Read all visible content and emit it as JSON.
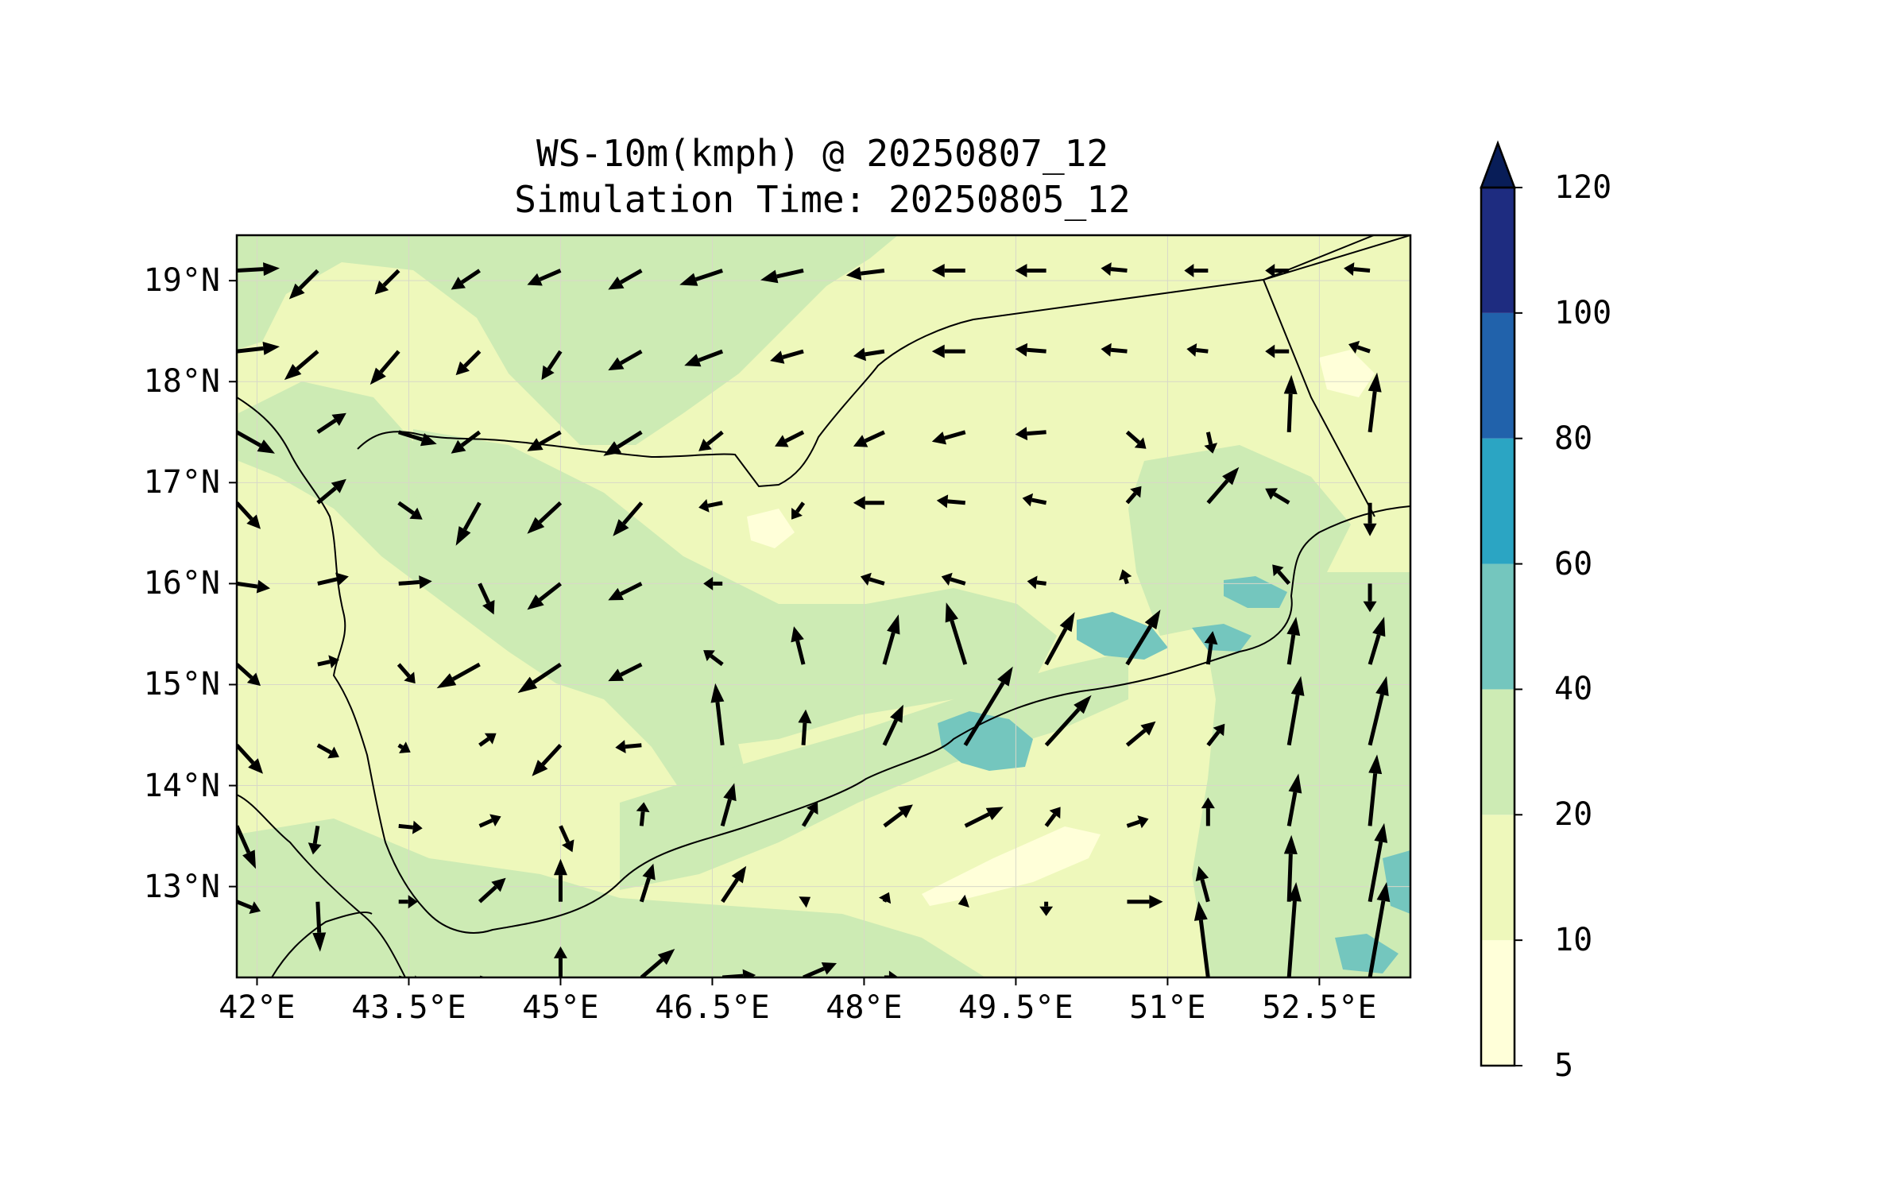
{
  "title": {
    "line1": "WS-10m(kmph) @ 20250807_12",
    "line2": "Simulation Time: 20250805_12"
  },
  "map": {
    "extent": {
      "lon": [
        41.8,
        53.4
      ],
      "lat": [
        12.1,
        19.45
      ]
    },
    "base_color": "#eef8bb",
    "lat_ticks": [
      {
        "value": 19,
        "label": "19°N"
      },
      {
        "value": 18,
        "label": "18°N"
      },
      {
        "value": 17,
        "label": "17°N"
      },
      {
        "value": 16,
        "label": "16°N"
      },
      {
        "value": 15,
        "label": "15°N"
      },
      {
        "value": 14,
        "label": "14°N"
      },
      {
        "value": 13,
        "label": "13°N"
      }
    ],
    "lon_ticks": [
      {
        "value": 42,
        "label": "42°E"
      },
      {
        "value": 43.5,
        "label": "43.5°E"
      },
      {
        "value": 45,
        "label": "45°E"
      },
      {
        "value": 46.5,
        "label": "46.5°E"
      },
      {
        "value": 48,
        "label": "48°E"
      },
      {
        "value": 49.5,
        "label": "49.5°E"
      },
      {
        "value": 51,
        "label": "51°E"
      },
      {
        "value": 52.5,
        "label": "52.5°E"
      }
    ],
    "gridlines": true,
    "wind_vectors_kmph": [
      {
        "lon": 41.8,
        "lat": 19.1,
        "u": 18,
        "v": 1
      },
      {
        "lon": 42.6,
        "lat": 19.1,
        "u": -12,
        "v": -12
      },
      {
        "lon": 43.4,
        "lat": 19.1,
        "u": -10,
        "v": -10
      },
      {
        "lon": 44.2,
        "lat": 19.1,
        "u": -12,
        "v": -8
      },
      {
        "lon": 45.0,
        "lat": 19.1,
        "u": -14,
        "v": -6
      },
      {
        "lon": 45.8,
        "lat": 19.1,
        "u": -14,
        "v": -8
      },
      {
        "lon": 46.6,
        "lat": 19.1,
        "u": -18,
        "v": -6
      },
      {
        "lon": 47.4,
        "lat": 19.1,
        "u": -18,
        "v": -4
      },
      {
        "lon": 48.2,
        "lat": 19.1,
        "u": -16,
        "v": -2
      },
      {
        "lon": 49.0,
        "lat": 19.1,
        "u": -14,
        "v": 0
      },
      {
        "lon": 49.8,
        "lat": 19.1,
        "u": -13,
        "v": 0
      },
      {
        "lon": 50.6,
        "lat": 19.1,
        "u": -11,
        "v": 1
      },
      {
        "lon": 51.4,
        "lat": 19.1,
        "u": -10,
        "v": 0
      },
      {
        "lon": 52.2,
        "lat": 19.1,
        "u": -10,
        "v": 0
      },
      {
        "lon": 53.0,
        "lat": 19.1,
        "u": -11,
        "v": 1
      },
      {
        "lon": 41.8,
        "lat": 18.3,
        "u": 18,
        "v": 2
      },
      {
        "lon": 42.6,
        "lat": 18.3,
        "u": -14,
        "v": -12
      },
      {
        "lon": 43.4,
        "lat": 18.3,
        "u": -12,
        "v": -14
      },
      {
        "lon": 44.2,
        "lat": 18.3,
        "u": -10,
        "v": -10
      },
      {
        "lon": 45.0,
        "lat": 18.3,
        "u": -8,
        "v": -12
      },
      {
        "lon": 45.8,
        "lat": 18.3,
        "u": -14,
        "v": -8
      },
      {
        "lon": 46.6,
        "lat": 18.3,
        "u": -16,
        "v": -6
      },
      {
        "lon": 47.4,
        "lat": 18.3,
        "u": -14,
        "v": -4
      },
      {
        "lon": 48.2,
        "lat": 18.3,
        "u": -13,
        "v": -2
      },
      {
        "lon": 49.0,
        "lat": 18.3,
        "u": -14,
        "v": 0
      },
      {
        "lon": 49.8,
        "lat": 18.3,
        "u": -13,
        "v": 1
      },
      {
        "lon": 50.6,
        "lat": 18.3,
        "u": -11,
        "v": 1
      },
      {
        "lon": 51.4,
        "lat": 18.3,
        "u": -9,
        "v": 1
      },
      {
        "lon": 52.2,
        "lat": 18.3,
        "u": -10,
        "v": 0
      },
      {
        "lon": 53.0,
        "lat": 18.3,
        "u": -9,
        "v": 3
      },
      {
        "lon": 41.8,
        "lat": 17.5,
        "u": 16,
        "v": -9
      },
      {
        "lon": 42.6,
        "lat": 17.5,
        "u": 12,
        "v": 8
      },
      {
        "lon": 43.4,
        "lat": 17.5,
        "u": 16,
        "v": -5
      },
      {
        "lon": 44.2,
        "lat": 17.5,
        "u": -12,
        "v": -9
      },
      {
        "lon": 45.0,
        "lat": 17.5,
        "u": -14,
        "v": -8
      },
      {
        "lon": 45.8,
        "lat": 17.5,
        "u": -16,
        "v": -10
      },
      {
        "lon": 46.6,
        "lat": 17.5,
        "u": -10,
        "v": -8
      },
      {
        "lon": 47.4,
        "lat": 17.5,
        "u": -12,
        "v": -6
      },
      {
        "lon": 48.2,
        "lat": 17.5,
        "u": -13,
        "v": -6
      },
      {
        "lon": 49.0,
        "lat": 17.5,
        "u": -14,
        "v": -4
      },
      {
        "lon": 49.8,
        "lat": 17.5,
        "u": -13,
        "v": -1
      },
      {
        "lon": 50.6,
        "lat": 17.5,
        "u": 8,
        "v": -7
      },
      {
        "lon": 51.4,
        "lat": 17.5,
        "u": 2,
        "v": -9
      },
      {
        "lon": 52.2,
        "lat": 17.5,
        "u": 1,
        "v": 24
      },
      {
        "lon": 53.0,
        "lat": 17.5,
        "u": 3,
        "v": 25
      },
      {
        "lon": 41.8,
        "lat": 16.8,
        "u": 10,
        "v": -11
      },
      {
        "lon": 42.6,
        "lat": 16.8,
        "u": 12,
        "v": 10
      },
      {
        "lon": 43.4,
        "lat": 16.8,
        "u": 10,
        "v": -7
      },
      {
        "lon": 44.2,
        "lat": 16.8,
        "u": -10,
        "v": -18
      },
      {
        "lon": 45.0,
        "lat": 16.8,
        "u": -14,
        "v": -13
      },
      {
        "lon": 45.8,
        "lat": 16.8,
        "u": -12,
        "v": -14
      },
      {
        "lon": 46.6,
        "lat": 16.8,
        "u": -10,
        "v": -2
      },
      {
        "lon": 47.4,
        "lat": 16.8,
        "u": -5,
        "v": -7
      },
      {
        "lon": 48.2,
        "lat": 16.8,
        "u": -13,
        "v": 0
      },
      {
        "lon": 49.0,
        "lat": 16.8,
        "u": -12,
        "v": 1
      },
      {
        "lon": 49.8,
        "lat": 16.8,
        "u": -10,
        "v": 2
      },
      {
        "lon": 50.6,
        "lat": 16.8,
        "u": 6,
        "v": 7
      },
      {
        "lon": 51.4,
        "lat": 16.8,
        "u": 13,
        "v": 15
      },
      {
        "lon": 52.2,
        "lat": 16.8,
        "u": -10,
        "v": 6
      },
      {
        "lon": 53.0,
        "lat": 16.8,
        "u": 0,
        "v": -14
      },
      {
        "lon": 41.8,
        "lat": 16.0,
        "u": 14,
        "v": -2
      },
      {
        "lon": 42.6,
        "lat": 16.0,
        "u": 13,
        "v": 3
      },
      {
        "lon": 43.4,
        "lat": 16.0,
        "u": 14,
        "v": 1
      },
      {
        "lon": 44.2,
        "lat": 16.0,
        "u": 6,
        "v": -13
      },
      {
        "lon": 45.0,
        "lat": 16.0,
        "u": -14,
        "v": -11
      },
      {
        "lon": 45.8,
        "lat": 16.0,
        "u": -14,
        "v": -7
      },
      {
        "lon": 46.6,
        "lat": 16.0,
        "u": -8,
        "v": 0
      },
      {
        "lon": 48.2,
        "lat": 16.0,
        "u": -10,
        "v": 3
      },
      {
        "lon": 49.0,
        "lat": 16.0,
        "u": -10,
        "v": 3
      },
      {
        "lon": 49.8,
        "lat": 16.0,
        "u": -8,
        "v": 1
      },
      {
        "lon": 50.6,
        "lat": 16.0,
        "u": -2,
        "v": 6
      },
      {
        "lon": 52.2,
        "lat": 16.0,
        "u": -7,
        "v": 8
      },
      {
        "lon": 53.0,
        "lat": 16.0,
        "u": 0,
        "v": -12
      },
      {
        "lon": 41.8,
        "lat": 15.2,
        "u": 10,
        "v": -9
      },
      {
        "lon": 42.6,
        "lat": 15.2,
        "u": 9,
        "v": 2
      },
      {
        "lon": 43.4,
        "lat": 15.2,
        "u": 7,
        "v": -8
      },
      {
        "lon": 44.2,
        "lat": 15.2,
        "u": -18,
        "v": -10
      },
      {
        "lon": 45.0,
        "lat": 15.2,
        "u": -18,
        "v": -12
      },
      {
        "lon": 45.8,
        "lat": 15.2,
        "u": -14,
        "v": -7
      },
      {
        "lon": 46.6,
        "lat": 15.2,
        "u": -8,
        "v": 6
      },
      {
        "lon": 47.4,
        "lat": 15.2,
        "u": -4,
        "v": 16
      },
      {
        "lon": 48.2,
        "lat": 15.2,
        "u": 6,
        "v": 21
      },
      {
        "lon": 49.0,
        "lat": 15.2,
        "u": -8,
        "v": 26
      },
      {
        "lon": 49.8,
        "lat": 15.2,
        "u": 12,
        "v": 22
      },
      {
        "lon": 50.6,
        "lat": 15.2,
        "u": 14,
        "v": 23
      },
      {
        "lon": 51.4,
        "lat": 15.2,
        "u": 2,
        "v": 14
      },
      {
        "lon": 52.2,
        "lat": 15.2,
        "u": 3,
        "v": 20
      },
      {
        "lon": 53.0,
        "lat": 15.2,
        "u": 6,
        "v": 20
      },
      {
        "lon": 41.8,
        "lat": 14.4,
        "u": 11,
        "v": -12
      },
      {
        "lon": 42.6,
        "lat": 14.4,
        "u": 9,
        "v": -5
      },
      {
        "lon": 43.4,
        "lat": 14.4,
        "u": 5,
        "v": -3
      },
      {
        "lon": 44.2,
        "lat": 14.4,
        "u": 7,
        "v": 5
      },
      {
        "lon": 45.0,
        "lat": 14.4,
        "u": -12,
        "v": -13
      },
      {
        "lon": 45.8,
        "lat": 14.4,
        "u": -11,
        "v": -1
      },
      {
        "lon": 46.6,
        "lat": 14.4,
        "u": -3,
        "v": 26
      },
      {
        "lon": 47.4,
        "lat": 14.4,
        "u": 1,
        "v": 15
      },
      {
        "lon": 48.2,
        "lat": 14.4,
        "u": 8,
        "v": 17
      },
      {
        "lon": 49.0,
        "lat": 14.4,
        "u": 20,
        "v": 33
      },
      {
        "lon": 49.8,
        "lat": 14.4,
        "u": 19,
        "v": 21
      },
      {
        "lon": 50.6,
        "lat": 14.4,
        "u": 12,
        "v": 10
      },
      {
        "lon": 51.4,
        "lat": 14.4,
        "u": 7,
        "v": 9
      },
      {
        "lon": 52.2,
        "lat": 14.4,
        "u": 5,
        "v": 29
      },
      {
        "lon": 53.0,
        "lat": 14.4,
        "u": 7,
        "v": 29
      },
      {
        "lon": 41.8,
        "lat": 13.6,
        "u": 8,
        "v": -18
      },
      {
        "lon": 42.6,
        "lat": 13.6,
        "u": -2,
        "v": -12
      },
      {
        "lon": 43.4,
        "lat": 13.6,
        "u": 10,
        "v": -1
      },
      {
        "lon": 44.2,
        "lat": 13.6,
        "u": 9,
        "v": 4
      },
      {
        "lon": 45.0,
        "lat": 13.6,
        "u": 5,
        "v": -11
      },
      {
        "lon": 45.8,
        "lat": 13.6,
        "u": 1,
        "v": 10
      },
      {
        "lon": 46.6,
        "lat": 13.6,
        "u": 5,
        "v": 18
      },
      {
        "lon": 47.4,
        "lat": 13.6,
        "u": 6,
        "v": 10
      },
      {
        "lon": 48.2,
        "lat": 13.6,
        "u": 12,
        "v": 9
      },
      {
        "lon": 49.0,
        "lat": 13.6,
        "u": 16,
        "v": 8
      },
      {
        "lon": 49.8,
        "lat": 13.6,
        "u": 6,
        "v": 8
      },
      {
        "lon": 50.6,
        "lat": 13.6,
        "u": 9,
        "v": 3
      },
      {
        "lon": 51.4,
        "lat": 13.6,
        "u": 0,
        "v": 12
      },
      {
        "lon": 52.2,
        "lat": 13.6,
        "u": 4,
        "v": 22
      },
      {
        "lon": 53.0,
        "lat": 13.6,
        "u": 3,
        "v": 30
      },
      {
        "lon": 41.8,
        "lat": 12.85,
        "u": 10,
        "v": -4
      },
      {
        "lon": 42.6,
        "lat": 12.85,
        "u": 1,
        "v": -21
      },
      {
        "lon": 43.4,
        "lat": 12.85,
        "u": 8,
        "v": 0
      },
      {
        "lon": 44.2,
        "lat": 12.85,
        "u": 11,
        "v": 10
      },
      {
        "lon": 45.0,
        "lat": 12.85,
        "u": 0,
        "v": 18
      },
      {
        "lon": 45.8,
        "lat": 12.85,
        "u": 5,
        "v": 16
      },
      {
        "lon": 46.6,
        "lat": 12.85,
        "u": 10,
        "v": 15
      },
      {
        "lon": 47.4,
        "lat": 12.85,
        "u": 3,
        "v": 2
      },
      {
        "lon": 48.2,
        "lat": 12.85,
        "u": 2,
        "v": 4
      },
      {
        "lon": 49.0,
        "lat": 12.85,
        "u": -3,
        "v": -1
      },
      {
        "lon": 49.8,
        "lat": 12.85,
        "u": 0,
        "v": -6
      },
      {
        "lon": 50.6,
        "lat": 12.85,
        "u": 15,
        "v": 0
      },
      {
        "lon": 51.4,
        "lat": 12.85,
        "u": -4,
        "v": 15
      },
      {
        "lon": 52.2,
        "lat": 12.85,
        "u": 1,
        "v": 28
      },
      {
        "lon": 53.0,
        "lat": 12.85,
        "u": 6,
        "v": 33
      },
      {
        "lon": 42.6,
        "lat": 12.1,
        "u": 1,
        "v": -12
      },
      {
        "lon": 43.4,
        "lat": 12.1,
        "u": 10,
        "v": -3
      },
      {
        "lon": 44.2,
        "lat": 12.1,
        "u": 12,
        "v": -4
      },
      {
        "lon": 45.0,
        "lat": 12.1,
        "u": 0,
        "v": 13
      },
      {
        "lon": 45.8,
        "lat": 12.1,
        "u": 14,
        "v": 12
      },
      {
        "lon": 46.6,
        "lat": 12.1,
        "u": 14,
        "v": 1
      },
      {
        "lon": 47.4,
        "lat": 12.1,
        "u": 14,
        "v": 6
      },
      {
        "lon": 48.2,
        "lat": 12.1,
        "u": 6,
        "v": 0
      },
      {
        "lon": 51.4,
        "lat": 12.1,
        "u": -4,
        "v": 32
      },
      {
        "lon": 52.2,
        "lat": 12.1,
        "u": 3,
        "v": 40
      },
      {
        "lon": 53.0,
        "lat": 12.1,
        "u": 7,
        "v": 40
      }
    ]
  },
  "colorbar": {
    "levels": [
      {
        "from": 5,
        "to": 10,
        "color": "#ffffd9"
      },
      {
        "from": 10,
        "to": 20,
        "color": "#eef8bb"
      },
      {
        "from": 20,
        "to": 40,
        "color": "#cdebb4"
      },
      {
        "from": 40,
        "to": 60,
        "color": "#74c6be"
      },
      {
        "from": 60,
        "to": 80,
        "color": "#2ba5c3"
      },
      {
        "from": 80,
        "to": 100,
        "color": "#2162ab"
      },
      {
        "from": 100,
        "to": 120,
        "color": "#1e2c80"
      }
    ],
    "extend_max_color": "#081d58",
    "ticks": [
      "5",
      "10",
      "20",
      "40",
      "60",
      "80",
      "100",
      "120"
    ]
  }
}
